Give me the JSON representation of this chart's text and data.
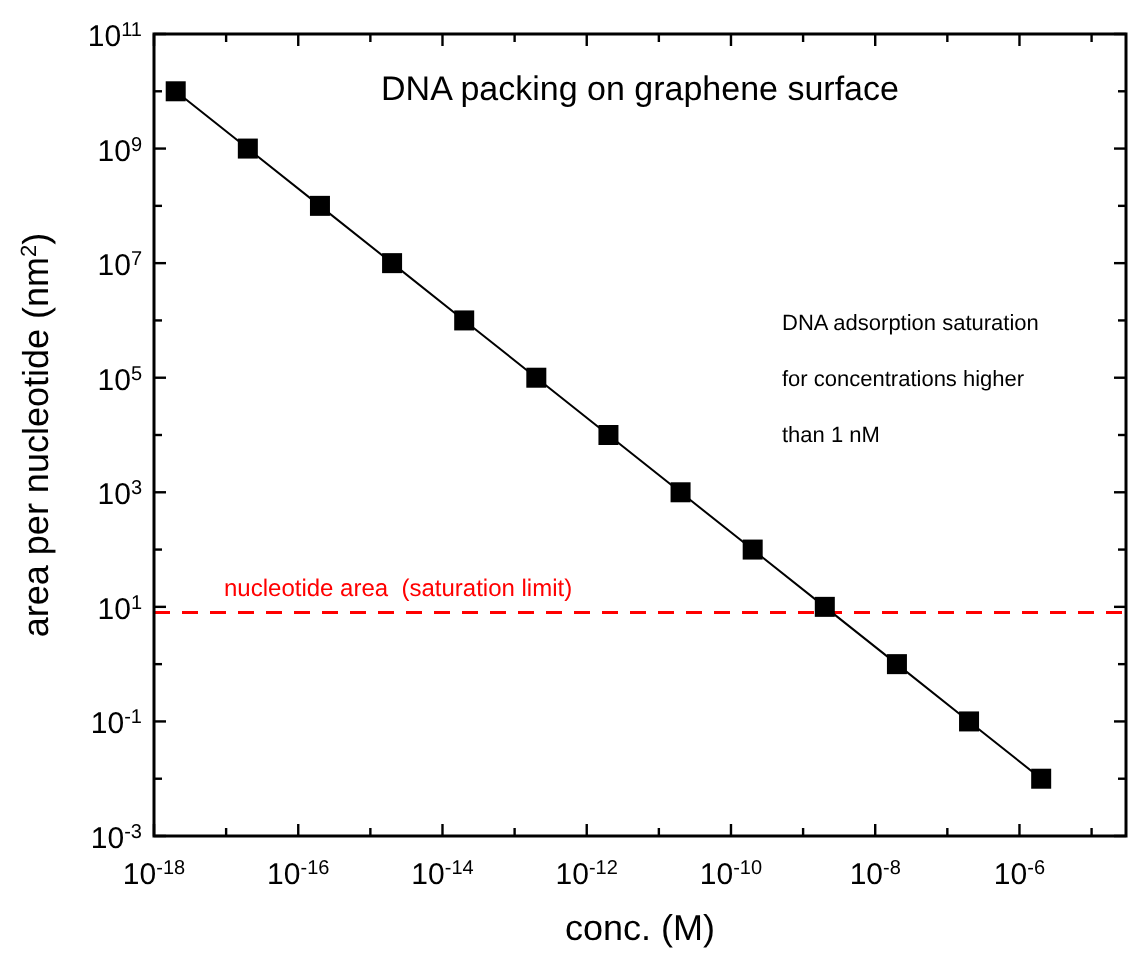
{
  "chart_data": {
    "type": "line",
    "title": "DNA packing on graphene surface",
    "xlabel": "conc. (M)",
    "ylabel": "area per nucleotide (nm$^{2}$)",
    "log": "xy",
    "marker": "square",
    "line_style": "solid",
    "grid": false,
    "x": [
      2e-18,
      2e-17,
      2e-16,
      2e-15,
      2e-14,
      2e-13,
      2e-12,
      2e-11,
      2e-10,
      2e-09,
      2e-08,
      2e-07,
      2e-06
    ],
    "series": [
      {
        "color": "#000000",
        "values": [
          10000000000.0,
          1000000000.0,
          100000000.0,
          10000000.0,
          1000000.0,
          100000.0,
          10000.0,
          1000.0,
          100.0,
          10.0,
          1,
          0.1,
          0.01
        ]
      }
    ],
    "xlim": [
      1e-18,
      3e-05
    ],
    "xticks": [
      {
        "value": 1e-18,
        "label": "10$^{-18}$"
      },
      {
        "value": 1e-17,
        "label": null
      },
      {
        "value": 1e-16,
        "label": "10$^{-16}$"
      },
      {
        "value": 1e-15,
        "label": null
      },
      {
        "value": 1e-14,
        "label": "10$^{-14}$"
      },
      {
        "value": 1e-13,
        "label": null
      },
      {
        "value": 1e-12,
        "label": "10$^{-12}$"
      },
      {
        "value": 1e-11,
        "label": null
      },
      {
        "value": 1e-10,
        "label": "10$^{-10}$"
      },
      {
        "value": 1e-09,
        "label": null
      },
      {
        "value": 1e-08,
        "label": "10$^{-8}$"
      },
      {
        "value": 1e-07,
        "label": null
      },
      {
        "value": 1e-06,
        "label": "10$^{-6}$"
      },
      {
        "value": 1e-05,
        "label": null
      }
    ],
    "ylim": [
      0.001,
      100000000000.0
    ],
    "yticks": [
      {
        "value": 0.001,
        "label": "10$^{-3}$"
      },
      {
        "value": 0.01,
        "label": null
      },
      {
        "value": 0.1,
        "label": "10$^{-1}$"
      },
      {
        "value": 1,
        "label": null
      },
      {
        "value": 10,
        "label": "10$^{1}$"
      },
      {
        "value": 100,
        "label": null
      },
      {
        "value": 1000.0,
        "label": "10$^{3}$"
      },
      {
        "value": 10000.0,
        "label": null
      },
      {
        "value": 100000.0,
        "label": "10$^{5}$"
      },
      {
        "value": 1000000.0,
        "label": null
      },
      {
        "value": 10000000.0,
        "label": "10$^{7}$"
      },
      {
        "value": 100000000.0,
        "label": null
      },
      {
        "value": 1000000000.0,
        "label": "10$^{9}$"
      },
      {
        "value": 10000000000.0,
        "label": null
      },
      {
        "value": 100000000000.0,
        "label": "10$^{11}$"
      }
    ],
    "ref_lines": [
      {
        "axis": "y",
        "value": 8,
        "label": "nucleotide area  (saturation limit)",
        "color": "#ff0000",
        "line_style": "dashed"
      }
    ],
    "annotations": [
      "DNA adsorption saturation",
      "for concentrations higher",
      "than 1 nM"
    ]
  }
}
